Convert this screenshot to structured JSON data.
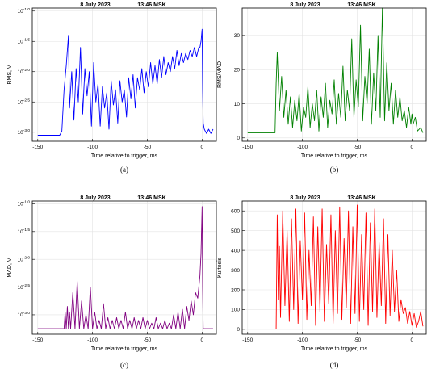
{
  "chart_data": [
    {
      "id": "a",
      "type": "line",
      "title_date": "8 July 2023",
      "title_time": "13:46 MSK",
      "caption": "(a)",
      "xlabel": "Time relative to trigger, ms",
      "ylabel": "RMS, V",
      "xlim": [
        -155,
        13
      ],
      "ylim": [
        -3.15,
        -0.95
      ],
      "log_y": true,
      "grid": true,
      "color": "#0000ff",
      "x_ticks": [
        -150,
        -100,
        -50,
        0
      ],
      "y_ticks": [
        -3.0,
        -2.5,
        -2.0,
        -1.5,
        -1.0
      ],
      "y_tick_labels": [
        "10^-3.0",
        "10^-2.5",
        "10^-2.0",
        "10^-1.5",
        "10^-1.0"
      ],
      "series": [
        {
          "x": [
            -150,
            -130,
            -128,
            -126,
            -124,
            -122,
            -121,
            -119,
            -117,
            -115,
            -113,
            -111,
            -109,
            -107,
            -105,
            -103,
            -101,
            -99,
            -97,
            -95,
            -93,
            -91,
            -89,
            -87,
            -85,
            -83,
            -81,
            -79,
            -77,
            -75,
            -73,
            -71,
            -69,
            -67,
            -65,
            -63,
            -61,
            -59,
            -57,
            -55,
            -53,
            -51,
            -49,
            -47,
            -45,
            -43,
            -41,
            -39,
            -37,
            -35,
            -33,
            -31,
            -29,
            -27,
            -25,
            -23,
            -21,
            -19,
            -17,
            -15,
            -13,
            -11,
            -9,
            -7,
            -5,
            -3,
            -2,
            -1,
            0,
            0.5,
            1,
            2,
            4,
            6,
            8,
            10
          ],
          "y": [
            -3.05,
            -3.05,
            -2.98,
            -2.3,
            -1.9,
            -1.4,
            -2.6,
            -2.0,
            -2.8,
            -1.95,
            -2.5,
            -1.6,
            -2.7,
            -1.95,
            -2.4,
            -2.0,
            -2.9,
            -1.85,
            -2.5,
            -2.2,
            -2.9,
            -2.25,
            -2.6,
            -2.35,
            -2.95,
            -2.15,
            -2.55,
            -2.3,
            -2.85,
            -2.15,
            -2.5,
            -2.3,
            -2.75,
            -2.1,
            -2.45,
            -2.05,
            -2.6,
            -2.1,
            -2.3,
            -1.95,
            -2.35,
            -2.0,
            -2.25,
            -1.85,
            -2.2,
            -1.9,
            -2.2,
            -1.8,
            -2.1,
            -1.75,
            -2.05,
            -1.85,
            -2.0,
            -1.75,
            -1.95,
            -1.65,
            -1.9,
            -1.7,
            -1.85,
            -1.7,
            -1.8,
            -1.65,
            -1.75,
            -1.6,
            -1.75,
            -1.6,
            -1.6,
            -1.5,
            -1.3,
            -2.3,
            -2.85,
            -2.95,
            -3.02,
            -2.95,
            -3.02,
            -2.95
          ]
        }
      ]
    },
    {
      "id": "b",
      "type": "line",
      "title_date": "8 July 2023",
      "title_time": "13:46 MSK",
      "caption": "(b)",
      "xlabel": "Time relative to trigger, ms",
      "ylabel": "RMS/MAD",
      "xlim": [
        -155,
        13
      ],
      "ylim": [
        -1,
        38
      ],
      "log_y": false,
      "grid": true,
      "color": "#008000",
      "x_ticks": [
        -150,
        -100,
        -50,
        0
      ],
      "y_ticks": [
        0,
        10,
        20,
        30
      ],
      "y_tick_labels": [
        "0",
        "10",
        "20",
        "30"
      ],
      "series": [
        {
          "x": [
            -150,
            -125,
            -124,
            -123,
            -121,
            -119,
            -117,
            -115,
            -113,
            -111,
            -109,
            -107,
            -105,
            -103,
            -101,
            -99,
            -97,
            -95,
            -93,
            -91,
            -89,
            -87,
            -85,
            -83,
            -81,
            -79,
            -77,
            -75,
            -73,
            -71,
            -69,
            -67,
            -65,
            -63,
            -61,
            -59,
            -57,
            -55,
            -53,
            -51,
            -49,
            -47,
            -45,
            -43,
            -41,
            -39,
            -37,
            -35,
            -33,
            -31,
            -29,
            -27,
            -25,
            -23,
            -21,
            -19,
            -17,
            -15,
            -13,
            -11,
            -9,
            -7,
            -5,
            -3,
            -1,
            0,
            1,
            3,
            5,
            8,
            10
          ],
          "y": [
            1.5,
            1.5,
            16,
            25,
            8,
            18,
            6,
            14,
            4,
            12,
            3,
            11,
            5,
            13,
            2,
            9,
            6,
            15,
            3,
            10,
            5,
            14,
            2,
            12,
            6,
            16,
            3,
            11,
            7,
            17,
            4,
            13,
            6,
            21,
            5,
            14,
            8,
            29,
            6,
            17,
            9,
            33,
            5,
            18,
            10,
            26,
            4,
            19,
            8,
            30,
            6,
            38,
            5,
            22,
            8,
            16,
            4,
            14,
            6,
            12,
            5,
            8,
            3,
            9,
            4,
            7,
            4,
            6,
            2,
            3,
            1.5
          ]
        }
      ]
    },
    {
      "id": "c",
      "type": "line",
      "title_date": "8 July 2023",
      "title_time": "13:46 MSK",
      "caption": "(c)",
      "xlabel": "Time relative to trigger, ms",
      "ylabel": "MAD, V",
      "xlim": [
        -155,
        13
      ],
      "ylim": [
        -3.35,
        -0.95
      ],
      "log_y": true,
      "grid": true,
      "color": "#800080",
      "x_ticks": [
        -150,
        -100,
        -50,
        0
      ],
      "y_ticks": [
        -3.0,
        -2.5,
        -2.0,
        -1.5,
        -1.0
      ],
      "y_tick_labels": [
        "10^-3.0",
        "10^-2.5",
        "10^-2.0",
        "10^-1.5",
        "10^-1.0"
      ],
      "series": [
        {
          "x": [
            -150,
            -126,
            -125,
            -124,
            -123,
            -122,
            -121,
            -120,
            -118,
            -116,
            -114,
            -112,
            -110,
            -108,
            -106,
            -104,
            -102,
            -100,
            -98,
            -96,
            -94,
            -92,
            -90,
            -88,
            -86,
            -84,
            -82,
            -80,
            -78,
            -76,
            -74,
            -72,
            -70,
            -68,
            -66,
            -64,
            -62,
            -60,
            -58,
            -56,
            -54,
            -52,
            -50,
            -48,
            -46,
            -44,
            -42,
            -40,
            -38,
            -36,
            -34,
            -32,
            -30,
            -28,
            -26,
            -24,
            -22,
            -20,
            -18,
            -16,
            -14,
            -12,
            -10,
            -8,
            -6,
            -4,
            -3,
            -2,
            -1,
            0,
            0.5,
            1,
            3,
            6,
            10
          ],
          "y": [
            -3.25,
            -3.25,
            -2.95,
            -3.25,
            -2.85,
            -3.25,
            -2.95,
            -3.25,
            -2.6,
            -3.25,
            -2.4,
            -3.25,
            -2.75,
            -3.25,
            -3.0,
            -3.25,
            -2.5,
            -3.25,
            -2.95,
            -3.25,
            -3.1,
            -3.25,
            -2.8,
            -3.25,
            -3.05,
            -3.25,
            -3.1,
            -3.25,
            -3.05,
            -3.25,
            -3.1,
            -3.25,
            -2.95,
            -3.25,
            -3.1,
            -3.25,
            -3.05,
            -3.25,
            -3.1,
            -3.25,
            -3.05,
            -3.25,
            -3.1,
            -3.25,
            -3.15,
            -3.25,
            -3.05,
            -3.25,
            -3.15,
            -3.25,
            -3.1,
            -3.25,
            -3.15,
            -3.25,
            -3.0,
            -3.25,
            -2.95,
            -3.25,
            -2.9,
            -3.25,
            -2.85,
            -3.1,
            -2.75,
            -3.0,
            -2.6,
            -2.7,
            -2.5,
            -2.3,
            -1.9,
            -1.05,
            -2.5,
            -3.25,
            -3.25,
            -3.25,
            -3.25
          ]
        }
      ]
    },
    {
      "id": "d",
      "type": "line",
      "title_date": "8 July 2023",
      "title_time": "13:46 MSK",
      "caption": "(d)",
      "xlabel": "Time relative to trigger, ms",
      "ylabel": "Kurtosis",
      "xlim": [
        -155,
        13
      ],
      "ylim": [
        -25,
        650
      ],
      "log_y": false,
      "grid": true,
      "color": "#ff0000",
      "x_ticks": [
        -150,
        -100,
        -50,
        0
      ],
      "y_ticks": [
        0,
        100,
        200,
        300,
        400,
        500,
        600
      ],
      "y_tick_labels": [
        "0",
        "100",
        "200",
        "300",
        "400",
        "500",
        "600"
      ],
      "series": [
        {
          "x": [
            -150,
            -124,
            -123,
            -122,
            -121,
            -120,
            -118,
            -116,
            -114,
            -112,
            -110,
            -108,
            -106,
            -104,
            -102,
            -100,
            -98,
            -96,
            -94,
            -92,
            -90,
            -88,
            -86,
            -84,
            -82,
            -80,
            -78,
            -76,
            -74,
            -72,
            -70,
            -68,
            -66,
            -64,
            -62,
            -60,
            -58,
            -56,
            -54,
            -52,
            -50,
            -48,
            -46,
            -44,
            -42,
            -40,
            -38,
            -36,
            -34,
            -32,
            -30,
            -28,
            -26,
            -24,
            -22,
            -20,
            -18,
            -16,
            -14,
            -12,
            -10,
            -8,
            -6,
            -4,
            -2,
            0,
            2,
            4,
            6,
            8,
            10
          ],
          "y": [
            2,
            2,
            580,
            150,
            420,
            60,
            600,
            120,
            500,
            40,
            560,
            100,
            610,
            30,
            450,
            150,
            590,
            50,
            400,
            120,
            570,
            20,
            520,
            90,
            610,
            40,
            430,
            130,
            580,
            30,
            500,
            80,
            620,
            50,
            460,
            110,
            600,
            30,
            520,
            80,
            630,
            40,
            480,
            100,
            590,
            20,
            540,
            90,
            610,
            60,
            440,
            120,
            560,
            30,
            480,
            70,
            400,
            90,
            300,
            40,
            150,
            80,
            110,
            30,
            90,
            20,
            80,
            10,
            40,
            90,
            15
          ]
        }
      ]
    }
  ]
}
